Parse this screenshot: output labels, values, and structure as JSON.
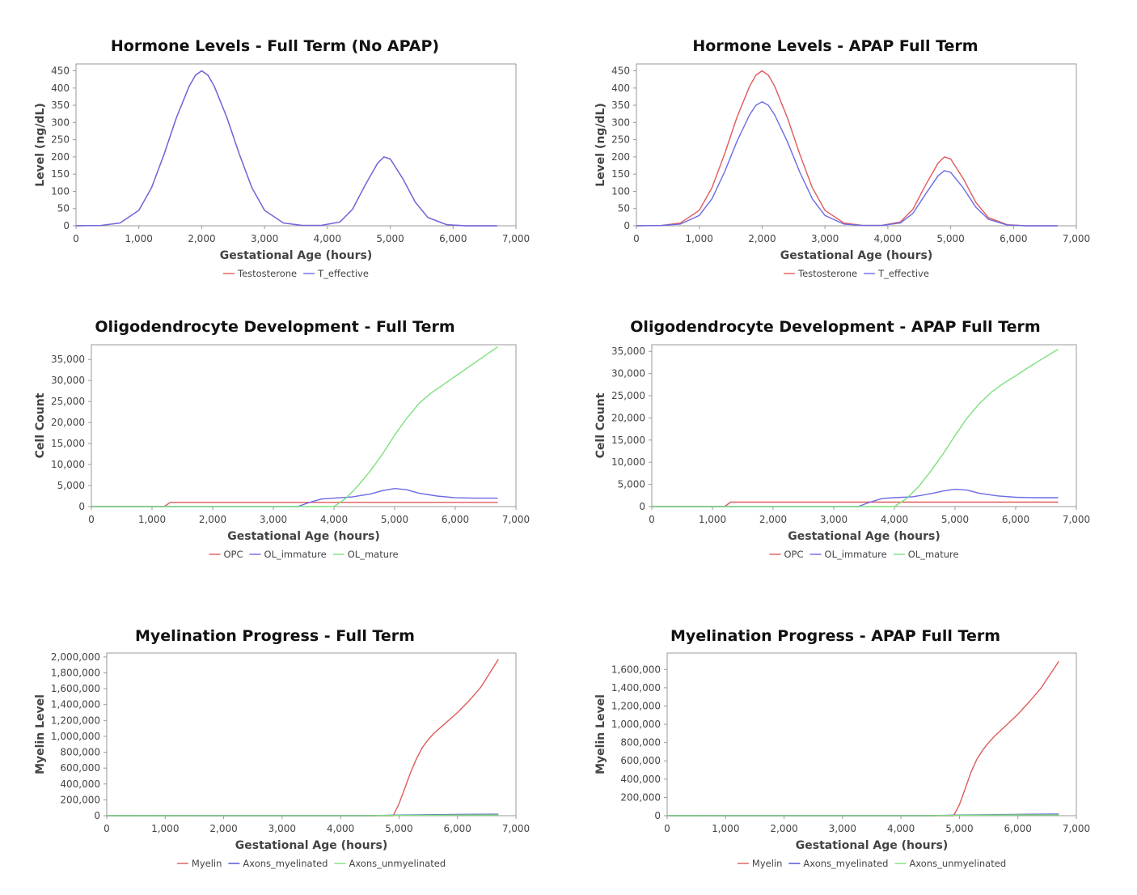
{
  "chart_data": [
    {
      "type": "line",
      "title": "Hormone Levels - Full Term (No APAP)",
      "xlabel": "Gestational Age (hours)",
      "ylabel": "Level (ng/dL)",
      "xlim": [
        0,
        7000
      ],
      "ylim": [
        0,
        470
      ],
      "xticks": [
        0,
        1000,
        2000,
        3000,
        4000,
        5000,
        6000,
        7000
      ],
      "xtick_labels": [
        "0",
        "1,000",
        "2,000",
        "3,000",
        "4,000",
        "5,000",
        "6,000",
        "7,000"
      ],
      "yticks": [
        0,
        50,
        100,
        150,
        200,
        250,
        300,
        350,
        400,
        450
      ],
      "ytick_labels": [
        "0",
        "50",
        "100",
        "150",
        "200",
        "250",
        "300",
        "350",
        "400",
        "450"
      ],
      "legend_position": "bottom",
      "series": [
        {
          "name": "Testosterone",
          "color": "#e05a5a",
          "x": [
            0,
            400,
            700,
            1000,
            1200,
            1400,
            1600,
            1800,
            1900,
            2000,
            2100,
            2200,
            2400,
            2600,
            2800,
            3000,
            3300,
            3600,
            3900,
            4200,
            4400,
            4600,
            4800,
            4900,
            5000,
            5200,
            5400,
            5600,
            5900,
            6200,
            6700
          ],
          "y": [
            0,
            1,
            8,
            45,
            110,
            207,
            315,
            405,
            437,
            450,
            437,
            405,
            315,
            207,
            110,
            45,
            8,
            1,
            1,
            11,
            48,
            118,
            182,
            200,
            194,
            137,
            68,
            24,
            3,
            0,
            0
          ]
        },
        {
          "name": "T_effective",
          "color": "#6a6ae6",
          "x": [
            0,
            400,
            700,
            1000,
            1200,
            1400,
            1600,
            1800,
            1900,
            2000,
            2100,
            2200,
            2400,
            2600,
            2800,
            3000,
            3300,
            3600,
            3900,
            4200,
            4400,
            4600,
            4800,
            4900,
            5000,
            5200,
            5400,
            5600,
            5900,
            6200,
            6700
          ],
          "y": [
            0,
            1,
            8,
            45,
            110,
            207,
            315,
            405,
            437,
            450,
            437,
            405,
            315,
            207,
            110,
            45,
            8,
            1,
            1,
            11,
            48,
            118,
            182,
            200,
            194,
            137,
            68,
            24,
            3,
            0,
            0
          ]
        }
      ]
    },
    {
      "type": "line",
      "title": "Hormone Levels - APAP Full Term",
      "xlabel": "Gestational Age (hours)",
      "ylabel": "Level (ng/dL)",
      "xlim": [
        0,
        7000
      ],
      "ylim": [
        0,
        470
      ],
      "xticks": [
        0,
        1000,
        2000,
        3000,
        4000,
        5000,
        6000,
        7000
      ],
      "xtick_labels": [
        "0",
        "1,000",
        "2,000",
        "3,000",
        "4,000",
        "5,000",
        "6,000",
        "7,000"
      ],
      "yticks": [
        0,
        50,
        100,
        150,
        200,
        250,
        300,
        350,
        400,
        450
      ],
      "ytick_labels": [
        "0",
        "50",
        "100",
        "150",
        "200",
        "250",
        "300",
        "350",
        "400",
        "450"
      ],
      "legend_position": "bottom",
      "series": [
        {
          "name": "Testosterone",
          "color": "#e05a5a",
          "x": [
            0,
            400,
            700,
            1000,
            1200,
            1400,
            1600,
            1800,
            1900,
            2000,
            2100,
            2200,
            2400,
            2600,
            2800,
            3000,
            3300,
            3600,
            3900,
            4200,
            4400,
            4600,
            4800,
            4900,
            5000,
            5200,
            5400,
            5600,
            5900,
            6200,
            6700
          ],
          "y": [
            0,
            1,
            8,
            45,
            110,
            207,
            315,
            405,
            437,
            450,
            437,
            405,
            315,
            207,
            110,
            45,
            8,
            1,
            1,
            11,
            48,
            118,
            182,
            200,
            194,
            137,
            68,
            24,
            3,
            0,
            0
          ]
        },
        {
          "name": "T_effective",
          "color": "#6a6ae6",
          "x": [
            0,
            400,
            700,
            1000,
            1200,
            1400,
            1600,
            1800,
            1900,
            2000,
            2100,
            2200,
            2400,
            2600,
            2800,
            3000,
            3300,
            3600,
            3900,
            4200,
            4400,
            4600,
            4800,
            4900,
            5000,
            5200,
            5400,
            5600,
            5900,
            6200,
            6700
          ],
          "y": [
            0,
            1,
            5,
            30,
            78,
            155,
            245,
            322,
            350,
            360,
            350,
            322,
            245,
            155,
            78,
            30,
            5,
            1,
            1,
            8,
            36,
            92,
            145,
            160,
            155,
            110,
            54,
            19,
            2,
            0,
            0
          ]
        }
      ]
    },
    {
      "type": "line",
      "title": "Oligodendrocyte Development - Full Term",
      "xlabel": "Gestational Age (hours)",
      "ylabel": "Cell Count",
      "xlim": [
        0,
        7000
      ],
      "ylim": [
        0,
        38500
      ],
      "xticks": [
        0,
        1000,
        2000,
        3000,
        4000,
        5000,
        6000,
        7000
      ],
      "xtick_labels": [
        "0",
        "1,000",
        "2,000",
        "3,000",
        "4,000",
        "5,000",
        "6,000",
        "7,000"
      ],
      "yticks": [
        0,
        5000,
        10000,
        15000,
        20000,
        25000,
        30000,
        35000
      ],
      "ytick_labels": [
        "0",
        "5,000",
        "10,000",
        "15,000",
        "20,000",
        "25,000",
        "30,000",
        "35,000"
      ],
      "legend_position": "bottom",
      "series": [
        {
          "name": "OPC",
          "color": "#e05a5a",
          "x": [
            0,
            1200,
            1300,
            2000,
            3000,
            4000,
            5000,
            6000,
            6700
          ],
          "y": [
            0,
            0,
            1000,
            1000,
            1000,
            1000,
            1000,
            1000,
            1000
          ]
        },
        {
          "name": "OL_immature",
          "color": "#6a6ae6",
          "x": [
            0,
            1300,
            2000,
            3000,
            3400,
            3600,
            3800,
            4000,
            4300,
            4600,
            4800,
            5000,
            5200,
            5400,
            5700,
            6000,
            6300,
            6700
          ],
          "y": [
            0,
            0,
            0,
            0,
            0,
            1000,
            1800,
            2000,
            2300,
            3000,
            3800,
            4300,
            4000,
            3200,
            2500,
            2100,
            2000,
            2000
          ]
        },
        {
          "name": "OL_mature",
          "color": "#7ee07e",
          "x": [
            0,
            3000,
            4000,
            4200,
            4400,
            4600,
            4800,
            5000,
            5200,
            5400,
            5600,
            5800,
            6000,
            6200,
            6400,
            6700
          ],
          "y": [
            0,
            0,
            0,
            2000,
            5000,
            8500,
            12500,
            17000,
            21000,
            24500,
            27000,
            29000,
            31000,
            33000,
            35000,
            38000
          ]
        }
      ]
    },
    {
      "type": "line",
      "title": "Oligodendrocyte Development - APAP Full Term",
      "xlabel": "Gestational Age (hours)",
      "ylabel": "Cell Count",
      "xlim": [
        0,
        7000
      ],
      "ylim": [
        0,
        36500
      ],
      "xticks": [
        0,
        1000,
        2000,
        3000,
        4000,
        5000,
        6000,
        7000
      ],
      "xtick_labels": [
        "0",
        "1,000",
        "2,000",
        "3,000",
        "4,000",
        "5,000",
        "6,000",
        "7,000"
      ],
      "yticks": [
        0,
        5000,
        10000,
        15000,
        20000,
        25000,
        30000,
        35000
      ],
      "ytick_labels": [
        "0",
        "5,000",
        "10,000",
        "15,000",
        "20,000",
        "25,000",
        "30,000",
        "35,000"
      ],
      "legend_position": "bottom",
      "series": [
        {
          "name": "OPC",
          "color": "#e05a5a",
          "x": [
            0,
            1200,
            1300,
            2000,
            3000,
            4000,
            5000,
            6000,
            6700
          ],
          "y": [
            0,
            0,
            1000,
            1000,
            1000,
            1000,
            1000,
            1000,
            1000
          ]
        },
        {
          "name": "OL_immature",
          "color": "#6a6ae6",
          "x": [
            0,
            1300,
            2000,
            3000,
            3400,
            3600,
            3800,
            4000,
            4300,
            4600,
            4800,
            5000,
            5200,
            5400,
            5700,
            6000,
            6300,
            6700
          ],
          "y": [
            0,
            0,
            0,
            0,
            0,
            1000,
            1800,
            2000,
            2200,
            2900,
            3500,
            3900,
            3700,
            3000,
            2400,
            2100,
            2000,
            2000
          ]
        },
        {
          "name": "OL_mature",
          "color": "#7ee07e",
          "x": [
            0,
            3000,
            4000,
            4200,
            4400,
            4600,
            4800,
            5000,
            5200,
            5400,
            5600,
            5800,
            6000,
            6200,
            6400,
            6700
          ],
          "y": [
            0,
            0,
            0,
            1800,
            4500,
            8000,
            11800,
            16000,
            20000,
            23200,
            25800,
            27800,
            29500,
            31300,
            33000,
            35500
          ]
        }
      ]
    },
    {
      "type": "line",
      "title": "Myelination Progress - Full Term",
      "xlabel": "Gestational Age (hours)",
      "ylabel": "Myelin Level",
      "xlim": [
        0,
        7000
      ],
      "ylim": [
        0,
        2050000
      ],
      "xticks": [
        0,
        1000,
        2000,
        3000,
        4000,
        5000,
        6000,
        7000
      ],
      "xtick_labels": [
        "0",
        "1,000",
        "2,000",
        "3,000",
        "4,000",
        "5,000",
        "6,000",
        "7,000"
      ],
      "yticks": [
        0,
        200000,
        400000,
        600000,
        800000,
        1000000,
        1200000,
        1400000,
        1600000,
        1800000,
        2000000
      ],
      "ytick_labels": [
        "0",
        "200,000",
        "400,000",
        "600,000",
        "800,000",
        "1,000,000",
        "1,200,000",
        "1,400,000",
        "1,600,000",
        "1,800,000",
        "2,000,000"
      ],
      "legend_position": "bottom",
      "series": [
        {
          "name": "Myelin",
          "color": "#e05a5a",
          "x": [
            0,
            4000,
            4900,
            5000,
            5100,
            5200,
            5300,
            5400,
            5500,
            5600,
            5800,
            6000,
            6200,
            6400,
            6700
          ],
          "y": [
            0,
            0,
            0,
            150000,
            350000,
            550000,
            720000,
            860000,
            960000,
            1040000,
            1170000,
            1300000,
            1450000,
            1620000,
            1970000
          ]
        },
        {
          "name": "Axons_myelinated",
          "color": "#4a4ad6",
          "x": [
            0,
            4500,
            5000,
            5500,
            6000,
            6700
          ],
          "y": [
            0,
            0,
            8000,
            12000,
            15000,
            18000
          ]
        },
        {
          "name": "Axons_unmyelinated",
          "color": "#7ee07e",
          "x": [
            0,
            4500,
            5000,
            5500,
            6000,
            6700
          ],
          "y": [
            0,
            1000,
            5000,
            7000,
            9000,
            10000
          ]
        }
      ]
    },
    {
      "type": "line",
      "title": "Myelination Progress - APAP Full Term",
      "xlabel": "Gestational Age (hours)",
      "ylabel": "Myelin Level",
      "xlim": [
        0,
        7000
      ],
      "ylim": [
        0,
        1780000
      ],
      "xticks": [
        0,
        1000,
        2000,
        3000,
        4000,
        5000,
        6000,
        7000
      ],
      "xtick_labels": [
        "0",
        "1,000",
        "2,000",
        "3,000",
        "4,000",
        "5,000",
        "6,000",
        "7,000"
      ],
      "yticks": [
        0,
        200000,
        400000,
        600000,
        800000,
        1000000,
        1200000,
        1400000,
        1600000
      ],
      "ytick_labels": [
        "0",
        "200,000",
        "400,000",
        "600,000",
        "800,000",
        "1,000,000",
        "1,200,000",
        "1,400,000",
        "1,600,000"
      ],
      "legend_position": "bottom",
      "series": [
        {
          "name": "Myelin",
          "color": "#e05a5a",
          "x": [
            0,
            4000,
            4900,
            5000,
            5100,
            5200,
            5300,
            5400,
            5500,
            5600,
            5800,
            6000,
            6200,
            6400,
            6700
          ],
          "y": [
            0,
            0,
            0,
            120000,
            300000,
            480000,
            620000,
            720000,
            800000,
            870000,
            990000,
            1110000,
            1250000,
            1400000,
            1690000
          ]
        },
        {
          "name": "Axons_myelinated",
          "color": "#4a4ad6",
          "x": [
            0,
            4500,
            5000,
            5500,
            6000,
            6700
          ],
          "y": [
            0,
            0,
            7000,
            11000,
            14000,
            17000
          ]
        },
        {
          "name": "Axons_unmyelinated",
          "color": "#7ee07e",
          "x": [
            0,
            4500,
            5000,
            5500,
            6000,
            6700
          ],
          "y": [
            0,
            1000,
            5000,
            7000,
            9000,
            10000
          ]
        }
      ]
    }
  ]
}
